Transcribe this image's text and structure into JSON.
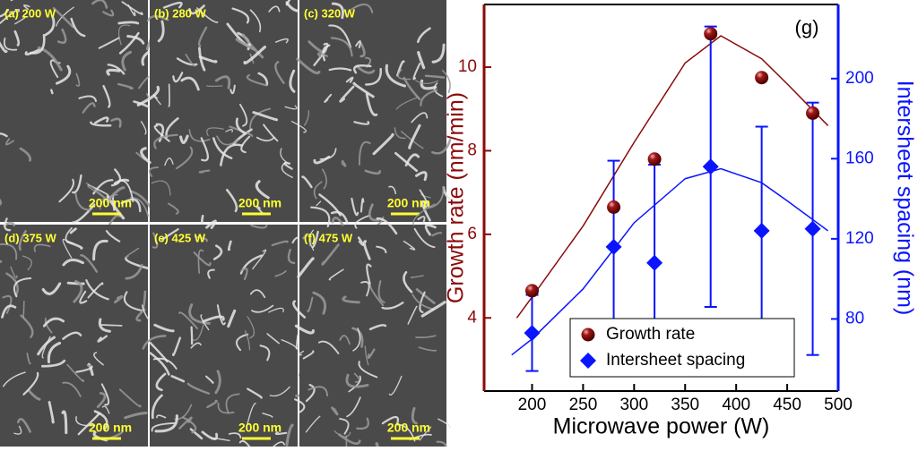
{
  "panels": [
    {
      "label": "(a) 200 W",
      "scale_bar": "200 nm"
    },
    {
      "label": "(b) 280 W",
      "scale_bar": "200 nm"
    },
    {
      "label": "(c) 320 W",
      "scale_bar": "200 nm"
    },
    {
      "label": "(d) 375 W",
      "scale_bar": "200 nm"
    },
    {
      "label": "(e) 425 W",
      "scale_bar": "200 nm"
    },
    {
      "label": "(f) 475 W",
      "scale_bar": "200 nm"
    }
  ],
  "chart_data": {
    "type": "scatter",
    "annotation": "(g)",
    "x_label": "Microwave power (W)",
    "y_label": "Growth rate (nm/min)",
    "y2_label": "Intersheet spacing (nm)",
    "xlim": [
      153,
      500
    ],
    "xticks": [
      200,
      250,
      300,
      350,
      400,
      450,
      500
    ],
    "ylim": [
      2.25,
      11.5
    ],
    "yticks": [
      4,
      6,
      8,
      10
    ],
    "y2lim": [
      44,
      237
    ],
    "y2ticks": [
      80,
      120,
      160,
      200
    ],
    "legend": "lower center",
    "series": [
      {
        "name": "Growth rate",
        "color": "#8b0a0a",
        "marker": "circle",
        "x": [
          200,
          280,
          320,
          375,
          425,
          475
        ],
        "values": [
          4.65,
          6.65,
          7.8,
          10.8,
          9.75,
          8.9
        ]
      },
      {
        "name": "Intersheet spacing",
        "color": "#0a14ff",
        "marker": "diamond",
        "axis": "y2",
        "x": [
          200,
          280,
          320,
          375,
          425,
          475
        ],
        "values": [
          73,
          116,
          108,
          156,
          124,
          125
        ],
        "errors": [
          19,
          43,
          49,
          70,
          52,
          63
        ]
      }
    ],
    "fits": [
      {
        "color": "#8b0a0a",
        "x": [
          185,
          200,
          250,
          300,
          350,
          385,
          425,
          450,
          490
        ],
        "values": [
          4.0,
          4.5,
          6.2,
          8.2,
          10.1,
          10.75,
          10.2,
          9.6,
          8.6
        ]
      },
      {
        "color": "#0a14ff",
        "axis": "y2",
        "x": [
          180,
          200,
          250,
          300,
          350,
          385,
          425,
          450,
          490
        ],
        "values": [
          62,
          70,
          95,
          128,
          150,
          155,
          148,
          139,
          124
        ]
      }
    ]
  }
}
